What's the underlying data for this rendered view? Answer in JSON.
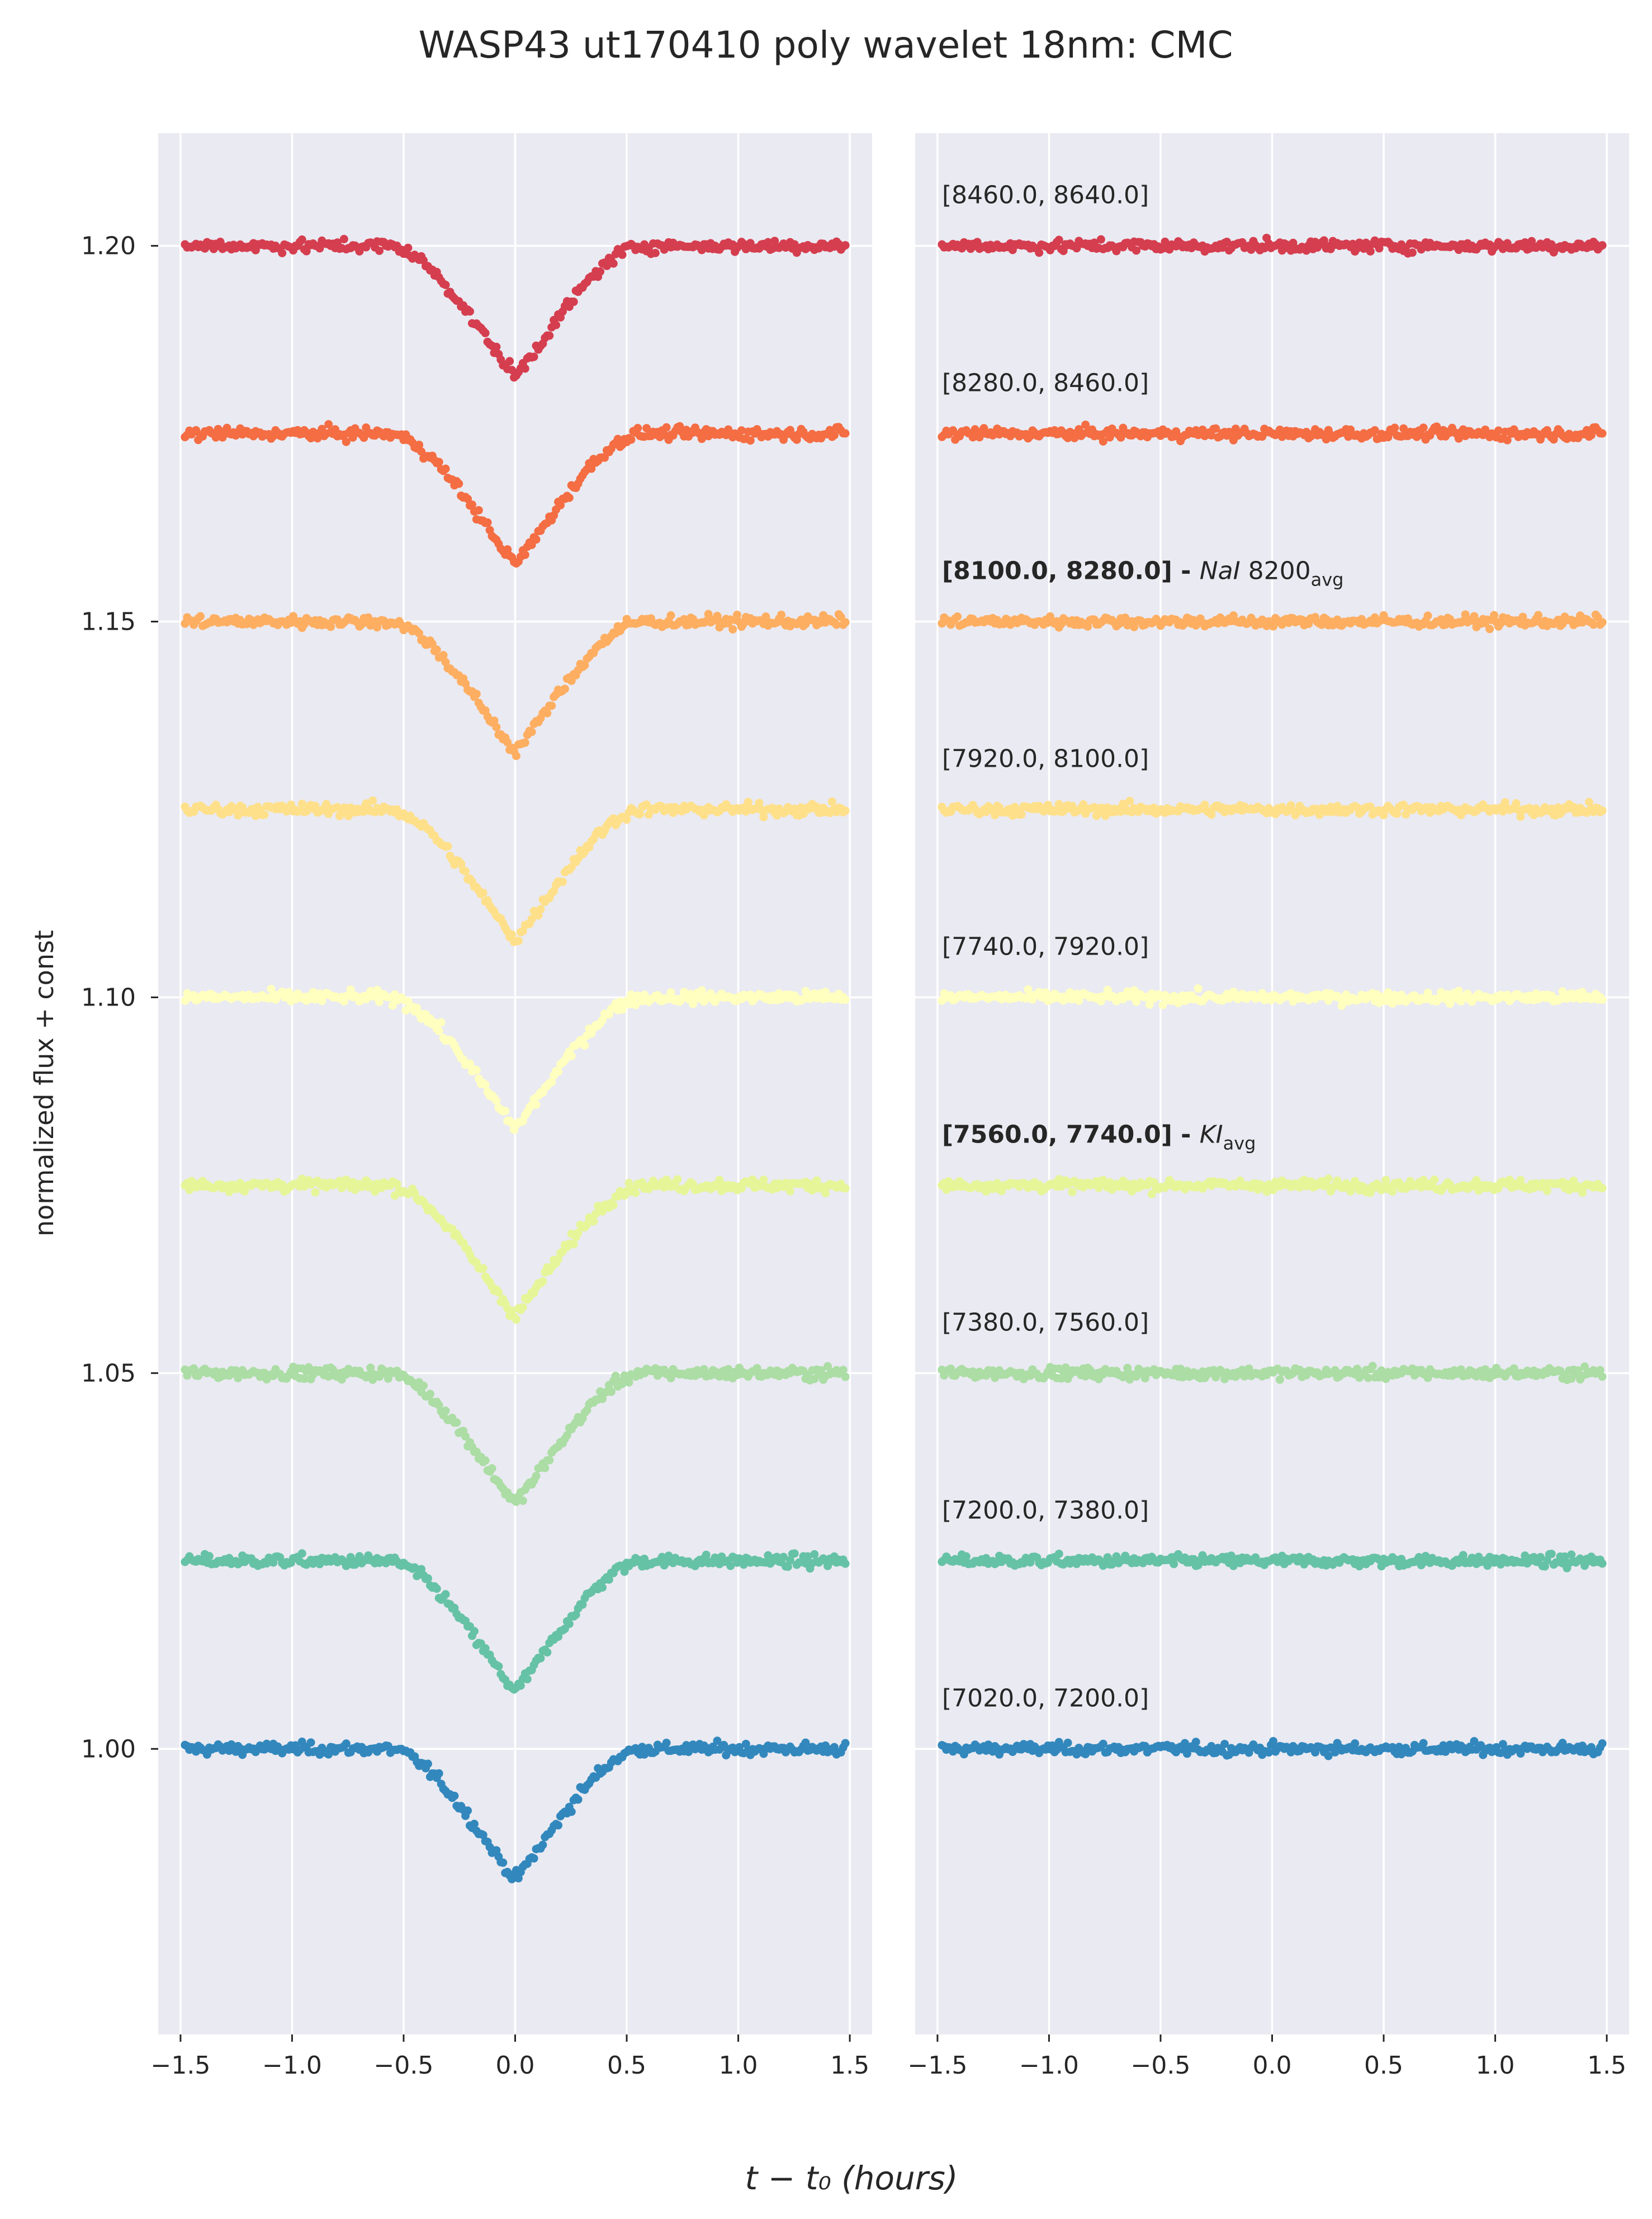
{
  "chart_data": {
    "type": "scatter",
    "title": "WASP43 ut170410 poly wavelet 18nm: CMC",
    "ylabel": "normalized flux + const",
    "xlabel": "t − t₀ (hours)",
    "xlim": [
      -1.6,
      1.6
    ],
    "ylim": [
      0.962,
      1.215
    ],
    "xticks": [
      -1.5,
      -1.0,
      -0.5,
      0.0,
      0.5,
      1.0,
      1.5
    ],
    "xtick_labels": [
      "−1.5",
      "−1.0",
      "−0.5",
      "0.0",
      "0.5",
      "1.0",
      "1.5"
    ],
    "yticks": [
      1.0,
      1.05,
      1.1,
      1.15,
      1.2
    ],
    "ytick_labels": [
      "1.00",
      "1.05",
      "1.10",
      "1.15",
      "1.20"
    ],
    "grid": true,
    "panels": [
      "light curves",
      "residuals"
    ],
    "transit_model": {
      "t_ingress_start": -0.58,
      "t_full_start": -0.32,
      "t_full_end": 0.32,
      "t_egress_end": 0.58,
      "depth": 0.0255
    },
    "series": [
      {
        "label": "[7020.0, 7200.0]",
        "offset": 1.0,
        "color": "#3288bd"
      },
      {
        "label": "[7200.0, 7380.0]",
        "offset": 1.025,
        "color": "#66c2a5"
      },
      {
        "label": "[7380.0, 7560.0]",
        "offset": 1.05,
        "color": "#abdda4"
      },
      {
        "label": "[7560.0, 7740.0]",
        "suffix": "KI",
        "suffix_sub": "avg",
        "bold": true,
        "offset": 1.075,
        "color": "#e6f598"
      },
      {
        "label": "[7740.0, 7920.0]",
        "offset": 1.1,
        "color": "#ffffbf"
      },
      {
        "label": "[7920.0, 8100.0]",
        "offset": 1.125,
        "color": "#fee08b"
      },
      {
        "label": "[8100.0, 8280.0]",
        "suffix": "NaI",
        "suffix2": "8200",
        "suffix_sub": "avg",
        "bold": true,
        "offset": 1.15,
        "color": "#fdae61"
      },
      {
        "label": "[8280.0, 8460.0]",
        "offset": 1.175,
        "color": "#f46d43"
      },
      {
        "label": "[8460.0, 8640.0]",
        "offset": 1.2,
        "color": "#d53e4f"
      }
    ]
  }
}
